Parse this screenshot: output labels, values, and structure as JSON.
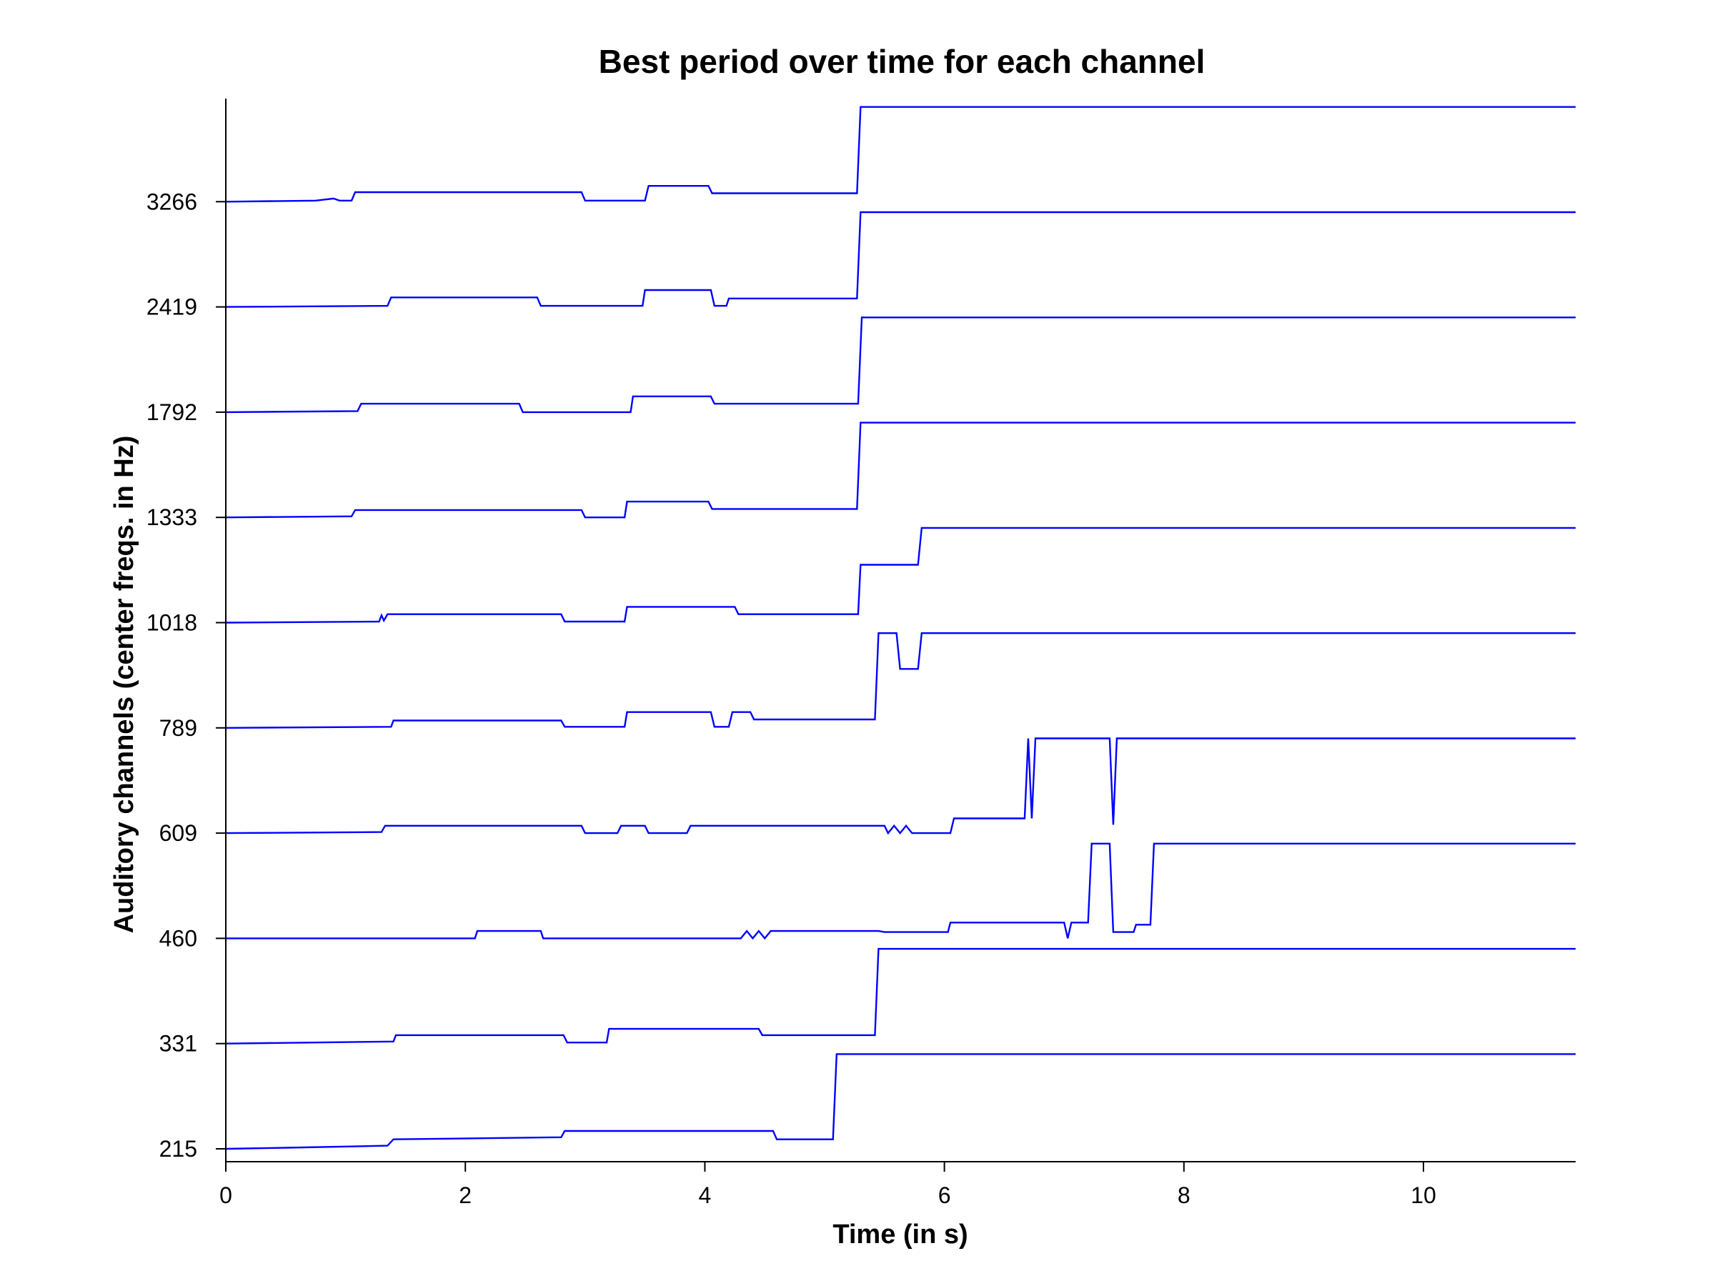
{
  "chart_data": {
    "type": "line",
    "title": "Best period over time for each channel",
    "xlabel": "Time (in s)",
    "ylabel": "Auditory channels (center freqs. in Hz)",
    "xlim": [
      0,
      11.27
    ],
    "xticks": [
      0,
      2,
      4,
      6,
      8,
      10
    ],
    "yticks": [
      "215",
      "331",
      "460",
      "609",
      "789",
      "1018",
      "1333",
      "1792",
      "2419",
      "3266"
    ],
    "grid": false,
    "line_color": "#0000ff",
    "series": [
      {
        "channel": "215",
        "points": [
          [
            0,
            0
          ],
          [
            0.5,
            0.01
          ],
          [
            1.35,
            0.03
          ],
          [
            1.4,
            0.09
          ],
          [
            2.8,
            0.11
          ],
          [
            2.83,
            0.17
          ],
          [
            4.57,
            0.17
          ],
          [
            4.6,
            0.09
          ],
          [
            5.07,
            0.09
          ],
          [
            5.1,
            0.9
          ],
          [
            11.27,
            0.9
          ]
        ]
      },
      {
        "channel": "331",
        "points": [
          [
            0,
            0
          ],
          [
            1.4,
            0.02
          ],
          [
            1.42,
            0.08
          ],
          [
            2.82,
            0.08
          ],
          [
            2.85,
            0.01
          ],
          [
            3.18,
            0.01
          ],
          [
            3.2,
            0.14
          ],
          [
            4.45,
            0.14
          ],
          [
            4.48,
            0.08
          ],
          [
            5.42,
            0.08
          ],
          [
            5.45,
            0.9
          ],
          [
            11.27,
            0.9
          ]
        ]
      },
      {
        "channel": "460",
        "points": [
          [
            0,
            0
          ],
          [
            2.08,
            0
          ],
          [
            2.1,
            0.07
          ],
          [
            2.63,
            0.07
          ],
          [
            2.65,
            0
          ],
          [
            4.3,
            0
          ],
          [
            4.35,
            0.07
          ],
          [
            4.4,
            0
          ],
          [
            4.45,
            0.07
          ],
          [
            4.5,
            0
          ],
          [
            4.55,
            0.07
          ],
          [
            5.45,
            0.07
          ],
          [
            5.5,
            0.06
          ],
          [
            6.03,
            0.06
          ],
          [
            6.05,
            0.15
          ],
          [
            7.0,
            0.15
          ],
          [
            7.03,
            0
          ],
          [
            7.06,
            0.15
          ],
          [
            7.2,
            0.15
          ],
          [
            7.23,
            0.9
          ],
          [
            7.38,
            0.9
          ],
          [
            7.41,
            0.06
          ],
          [
            7.58,
            0.06
          ],
          [
            7.6,
            0.13
          ],
          [
            7.72,
            0.13
          ],
          [
            7.75,
            0.9
          ],
          [
            11.27,
            0.9
          ]
        ]
      },
      {
        "channel": "609",
        "points": [
          [
            0,
            0
          ],
          [
            1.3,
            0.01
          ],
          [
            1.33,
            0.07
          ],
          [
            2.97,
            0.07
          ],
          [
            3.0,
            0
          ],
          [
            3.27,
            0
          ],
          [
            3.3,
            0.07
          ],
          [
            3.5,
            0.07
          ],
          [
            3.53,
            0
          ],
          [
            3.85,
            0
          ],
          [
            3.88,
            0.07
          ],
          [
            5.5,
            0.07
          ],
          [
            5.53,
            0
          ],
          [
            5.58,
            0.07
          ],
          [
            5.63,
            0
          ],
          [
            5.68,
            0.07
          ],
          [
            5.73,
            0
          ],
          [
            6.05,
            0
          ],
          [
            6.08,
            0.14
          ],
          [
            6.67,
            0.14
          ],
          [
            6.7,
            0.9
          ],
          [
            6.73,
            0.14
          ],
          [
            6.76,
            0.9
          ],
          [
            7.38,
            0.9
          ],
          [
            7.41,
            0.08
          ],
          [
            7.44,
            0.9
          ],
          [
            11.27,
            0.9
          ]
        ]
      },
      {
        "channel": "789",
        "points": [
          [
            0,
            0
          ],
          [
            1.38,
            0.01
          ],
          [
            1.4,
            0.07
          ],
          [
            2.8,
            0.07
          ],
          [
            2.83,
            0.01
          ],
          [
            3.33,
            0.01
          ],
          [
            3.35,
            0.15
          ],
          [
            4.05,
            0.15
          ],
          [
            4.08,
            0.01
          ],
          [
            4.2,
            0.01
          ],
          [
            4.23,
            0.15
          ],
          [
            4.38,
            0.15
          ],
          [
            4.41,
            0.08
          ],
          [
            5.42,
            0.08
          ],
          [
            5.45,
            0.9
          ],
          [
            5.6,
            0.9
          ],
          [
            5.63,
            0.56
          ],
          [
            5.78,
            0.56
          ],
          [
            5.81,
            0.9
          ],
          [
            11.27,
            0.9
          ]
        ]
      },
      {
        "channel": "1018",
        "points": [
          [
            0,
            0
          ],
          [
            1.28,
            0.01
          ],
          [
            1.3,
            0.07
          ],
          [
            1.32,
            0.02
          ],
          [
            1.35,
            0.08
          ],
          [
            2.8,
            0.08
          ],
          [
            2.83,
            0.01
          ],
          [
            3.33,
            0.01
          ],
          [
            3.35,
            0.15
          ],
          [
            4.25,
            0.15
          ],
          [
            4.28,
            0.08
          ],
          [
            5.28,
            0.08
          ],
          [
            5.3,
            0.55
          ],
          [
            5.78,
            0.55
          ],
          [
            5.81,
            0.9
          ],
          [
            11.27,
            0.9
          ]
        ]
      },
      {
        "channel": "1333",
        "points": [
          [
            0,
            0
          ],
          [
            1.05,
            0.01
          ],
          [
            1.08,
            0.07
          ],
          [
            2.97,
            0.07
          ],
          [
            3.0,
            0
          ],
          [
            3.33,
            0
          ],
          [
            3.35,
            0.15
          ],
          [
            4.03,
            0.15
          ],
          [
            4.06,
            0.08
          ],
          [
            5.27,
            0.08
          ],
          [
            5.3,
            0.9
          ],
          [
            11.27,
            0.9
          ]
        ]
      },
      {
        "channel": "1792",
        "points": [
          [
            0,
            0
          ],
          [
            1.1,
            0.01
          ],
          [
            1.13,
            0.08
          ],
          [
            2.45,
            0.08
          ],
          [
            2.48,
            0
          ],
          [
            3.38,
            0
          ],
          [
            3.4,
            0.15
          ],
          [
            4.05,
            0.15
          ],
          [
            4.08,
            0.08
          ],
          [
            5.28,
            0.08
          ],
          [
            5.31,
            0.9
          ],
          [
            11.27,
            0.9
          ]
        ]
      },
      {
        "channel": "2419",
        "points": [
          [
            0,
            0
          ],
          [
            1.35,
            0.01
          ],
          [
            1.38,
            0.09
          ],
          [
            2.6,
            0.09
          ],
          [
            2.63,
            0.01
          ],
          [
            3.48,
            0.01
          ],
          [
            3.5,
            0.16
          ],
          [
            4.05,
            0.16
          ],
          [
            4.08,
            0.01
          ],
          [
            4.18,
            0.01
          ],
          [
            4.2,
            0.08
          ],
          [
            5.27,
            0.08
          ],
          [
            5.3,
            0.9
          ],
          [
            11.27,
            0.9
          ]
        ]
      },
      {
        "channel": "3266",
        "points": [
          [
            0,
            0
          ],
          [
            0.75,
            0.01
          ],
          [
            0.9,
            0.03
          ],
          [
            0.95,
            0.01
          ],
          [
            1.05,
            0.01
          ],
          [
            1.08,
            0.09
          ],
          [
            2.97,
            0.09
          ],
          [
            3.0,
            0.01
          ],
          [
            3.5,
            0.01
          ],
          [
            3.53,
            0.15
          ],
          [
            4.03,
            0.15
          ],
          [
            4.06,
            0.08
          ],
          [
            5.27,
            0.08
          ],
          [
            5.3,
            0.9
          ],
          [
            11.27,
            0.9
          ]
        ]
      }
    ]
  }
}
